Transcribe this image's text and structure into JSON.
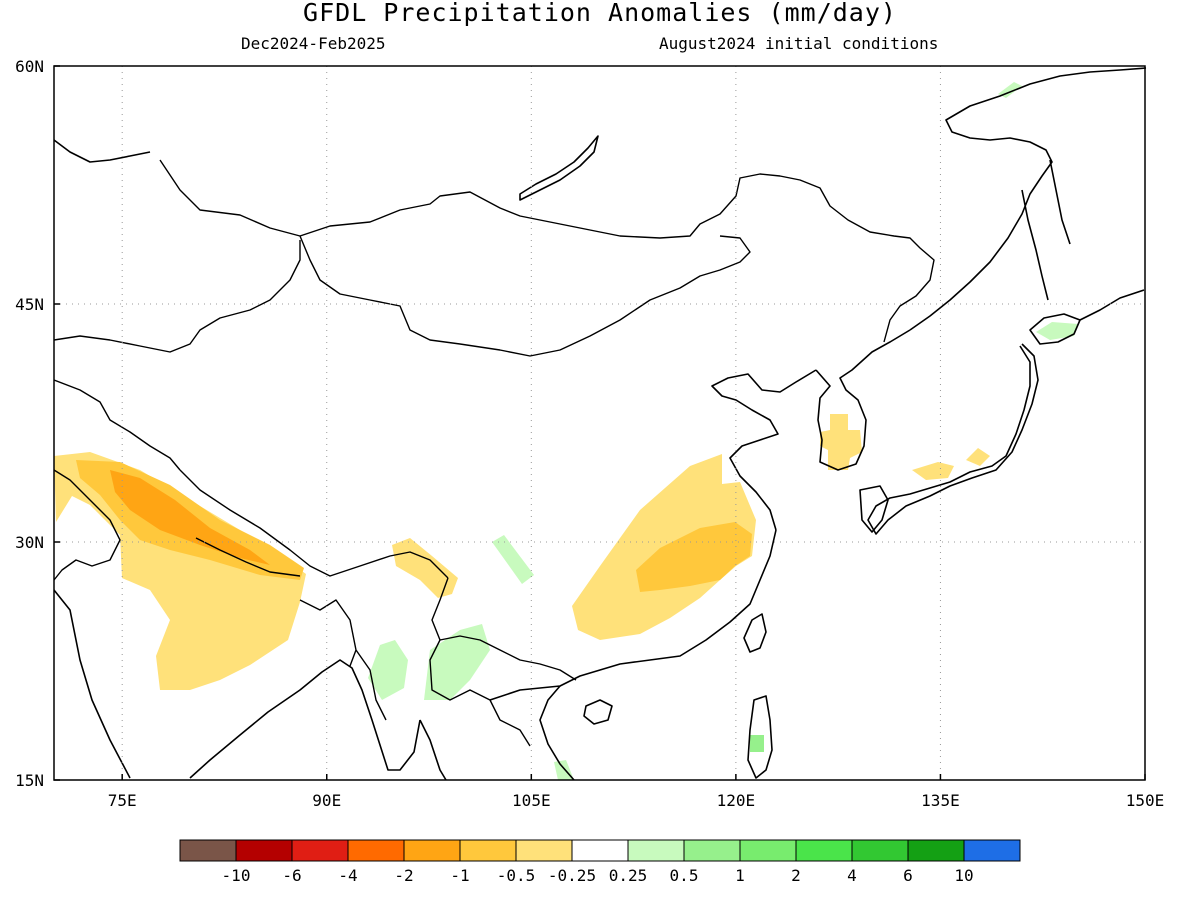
{
  "header": {
    "title": "GFDL Precipitation Anomalies (mm/day)",
    "season": "Dec2024-Feb2025",
    "init": "August2024 initial conditions"
  },
  "map": {
    "lon_range": [
      70,
      150
    ],
    "lat_range": [
      15,
      60
    ],
    "lon_ticks": [
      {
        "value": 75,
        "label": "75E"
      },
      {
        "value": 90,
        "label": "90E"
      },
      {
        "value": 105,
        "label": "105E"
      },
      {
        "value": 120,
        "label": "120E"
      },
      {
        "value": 135,
        "label": "135E"
      },
      {
        "value": 150,
        "label": "150E"
      }
    ],
    "lat_ticks": [
      {
        "value": 15,
        "label": "15N"
      },
      {
        "value": 30,
        "label": "30N"
      },
      {
        "value": 45,
        "label": "45N"
      },
      {
        "value": 60,
        "label": "60N"
      }
    ],
    "grid": true
  },
  "colorbar": {
    "colors": [
      "#7a5548",
      "#b40000",
      "#e01e14",
      "#ff6a00",
      "#ffa514",
      "#ffc83c",
      "#ffe17a",
      "#ffffff",
      "#c8fabe",
      "#96f08c",
      "#78ec6e",
      "#4ae44a",
      "#32c832",
      "#14a014",
      "#1e6ee6"
    ],
    "labels": [
      "-10",
      "-6",
      "-4",
      "-2",
      "-1",
      "-0.5",
      "-0.25",
      "0.25",
      "0.5",
      "1",
      "2",
      "4",
      "6",
      "10"
    ]
  }
}
